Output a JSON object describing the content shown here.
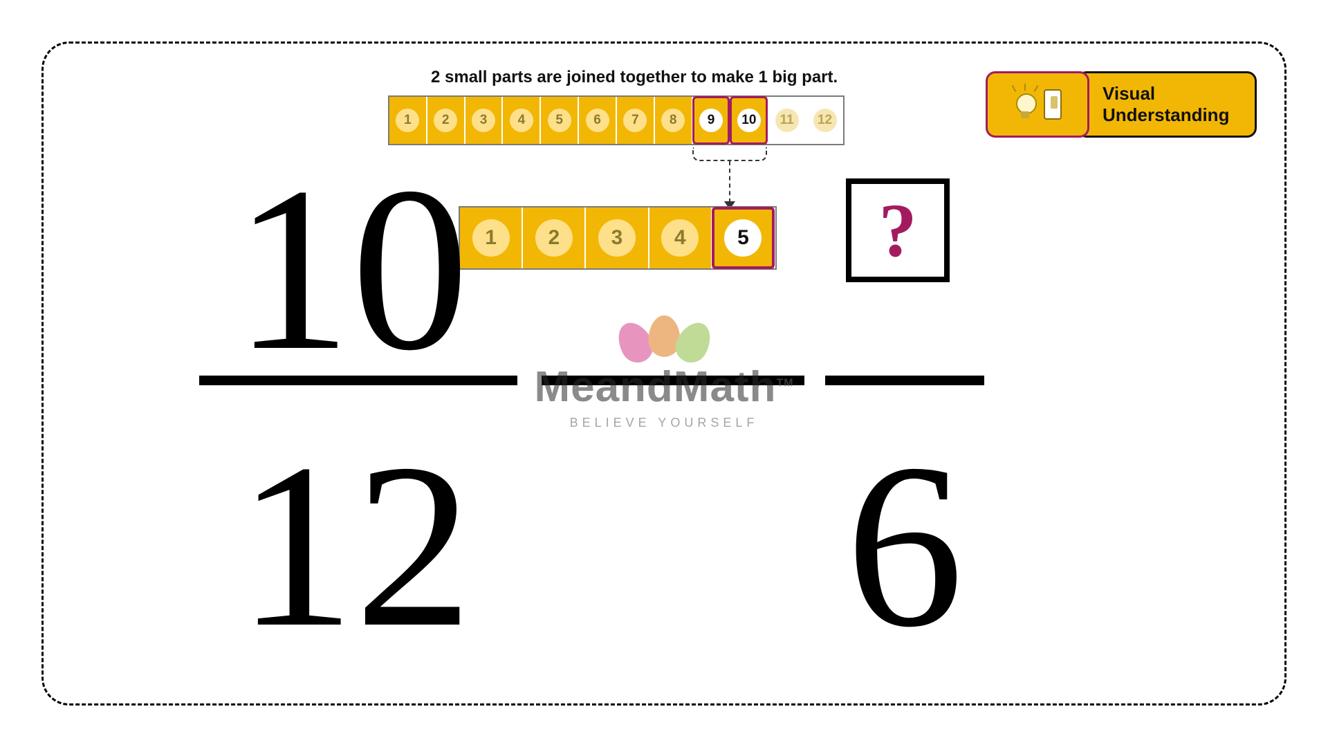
{
  "caption": "2 small parts are joined together to make 1 big part.",
  "colors": {
    "accent_gold": "#f2b705",
    "accent_magenta": "#a31b5f",
    "frame_dash": "#000000",
    "coin_gold_bg": "#ffe08a",
    "coin_gold_fg": "#8c7a2e",
    "coin_white_bg": "#ffffff",
    "coin_white_fg": "#111111",
    "coin_faded_bg": "#f6e6b3",
    "coin_faded_fg": "#b9a84a"
  },
  "left_fraction": {
    "numerator": "10",
    "denominator": "12"
  },
  "right_fraction": {
    "numerator": "?",
    "denominator": "6"
  },
  "strip_top": {
    "count": 12,
    "cells": [
      {
        "n": "1",
        "filled": true,
        "coin": "gold",
        "hl": false
      },
      {
        "n": "2",
        "filled": true,
        "coin": "gold",
        "hl": false
      },
      {
        "n": "3",
        "filled": true,
        "coin": "gold",
        "hl": false
      },
      {
        "n": "4",
        "filled": true,
        "coin": "gold",
        "hl": false
      },
      {
        "n": "5",
        "filled": true,
        "coin": "gold",
        "hl": false
      },
      {
        "n": "6",
        "filled": true,
        "coin": "gold",
        "hl": false
      },
      {
        "n": "7",
        "filled": true,
        "coin": "gold",
        "hl": false
      },
      {
        "n": "8",
        "filled": true,
        "coin": "gold",
        "hl": false
      },
      {
        "n": "9",
        "filled": true,
        "coin": "white",
        "hl": true
      },
      {
        "n": "10",
        "filled": true,
        "coin": "white",
        "hl": true
      },
      {
        "n": "11",
        "filled": false,
        "coin": "faded",
        "hl": false
      },
      {
        "n": "12",
        "filled": false,
        "coin": "faded",
        "hl": false
      }
    ]
  },
  "strip_bot": {
    "count": 5,
    "cells": [
      {
        "n": "1",
        "coin": "gold",
        "hl": false
      },
      {
        "n": "2",
        "coin": "gold",
        "hl": false
      },
      {
        "n": "3",
        "coin": "gold",
        "hl": false
      },
      {
        "n": "4",
        "coin": "gold",
        "hl": false
      },
      {
        "n": "5",
        "coin": "white",
        "hl": true
      }
    ]
  },
  "badge": {
    "line1": "Visual",
    "line2": "Understanding"
  },
  "watermark": {
    "title": "MeandMath",
    "tm": "TM",
    "sub": "BELIEVE YOURSELF"
  }
}
